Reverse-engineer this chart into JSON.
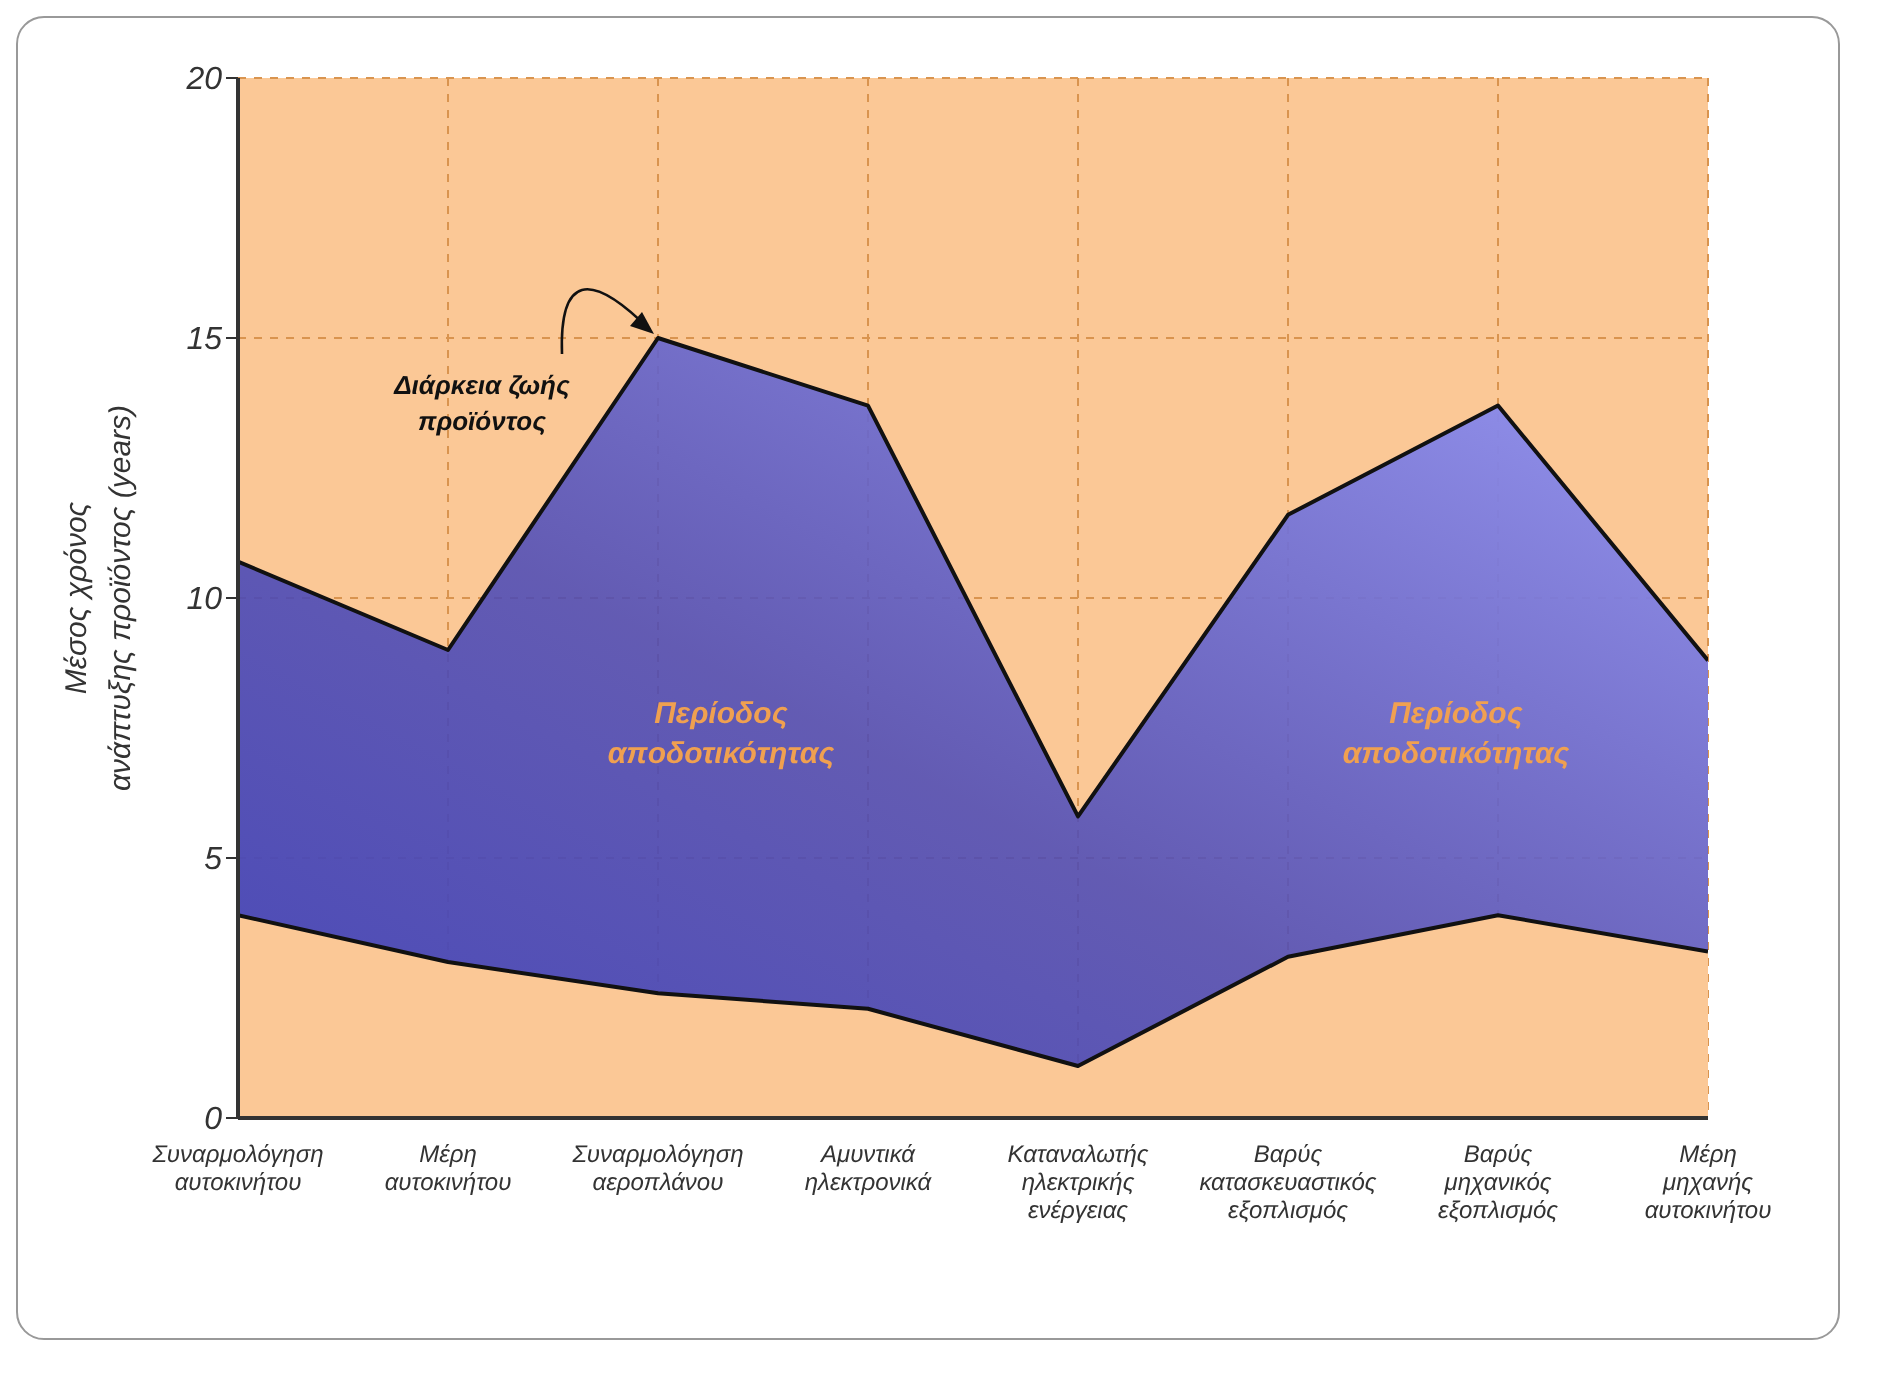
{
  "chart_data": {
    "type": "area",
    "ylabel": "Μέσος χρόνος\nανάπτυξης προϊόντος (years)",
    "categories": [
      "Συναρμολόγηση\nαυτοκινήτου",
      "Μέρη\nαυτοκινήτου",
      "Συναρμολόγηση\nαεροπλάνου",
      "Αμυντικά\nηλεκτρονικά",
      "Καταναλωτής\nηλεκτρικής\nενέργειας",
      "Βαρύς\nκατασκευαστικός\nεξοπλισμός",
      "Βαρύς\nμηχανικός\nεξοπλισμός",
      "Μέρη\nμηχανής\nαυτοκινήτου"
    ],
    "series": [
      {
        "color": "#4848b8",
        "values": [
          10.7,
          9.0,
          15.0,
          13.7,
          5.8,
          11.6,
          13.7,
          8.8
        ]
      },
      {
        "color": "#fbc896",
        "values": [
          3.9,
          3.0,
          2.4,
          2.1,
          1.0,
          3.1,
          3.9,
          3.2
        ]
      }
    ],
    "ylim": [
      0,
      20
    ],
    "yticks": [
      0,
      5,
      10,
      15,
      20
    ],
    "grid": true,
    "annotations": [
      {
        "text": "Διάρκεια ζωής\nπροϊόντος",
        "x": "Συναρμολόγηση\nαεροπλάνου",
        "y": 15
      },
      "Περίοδος\nαποδοτικότητας",
      "Περίοδος\nαποδοτικότητας"
    ]
  }
}
